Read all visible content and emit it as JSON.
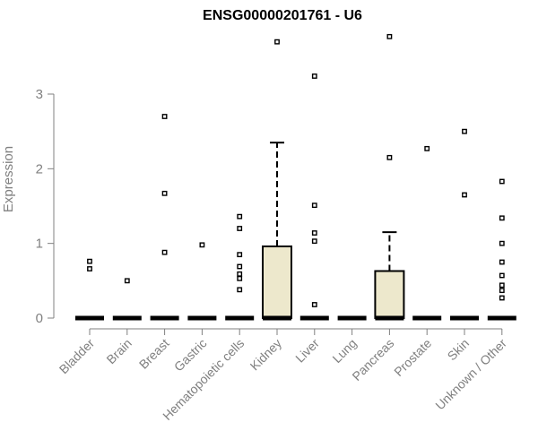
{
  "chart_data": {
    "type": "box",
    "title": "ENSG00000201761 - U6",
    "xlabel": "",
    "ylabel": "Expression",
    "ylim": [
      -0.1,
      3.85
    ],
    "yticks": [
      0,
      1,
      2,
      3
    ],
    "yticklabels": [
      "0",
      "1",
      "2",
      "3"
    ],
    "categories": [
      "Bladder",
      "Brain",
      "Breast",
      "Gastric",
      "Hematopoietic cells",
      "Kidney",
      "Liver",
      "Lung",
      "Pancreas",
      "Prostate",
      "Skin",
      "Unknown / Other"
    ],
    "boxes": [
      {
        "q1": 0,
        "median": 0,
        "q3": 0,
        "whisker_low": 0,
        "whisker_high": 0,
        "outliers": [
          0.66,
          0.76
        ]
      },
      {
        "q1": 0,
        "median": 0,
        "q3": 0,
        "whisker_low": 0,
        "whisker_high": 0,
        "outliers": [
          0.5
        ]
      },
      {
        "q1": 0,
        "median": 0,
        "q3": 0,
        "whisker_low": 0,
        "whisker_high": 0,
        "outliers": [
          0.88,
          1.67,
          2.7
        ]
      },
      {
        "q1": 0,
        "median": 0,
        "q3": 0,
        "whisker_low": 0,
        "whisker_high": 0,
        "outliers": [
          0.98
        ]
      },
      {
        "q1": 0,
        "median": 0,
        "q3": 0,
        "whisker_low": 0,
        "whisker_high": 0,
        "outliers": [
          0.38,
          0.53,
          0.59,
          0.69,
          0.85,
          1.2,
          1.36
        ]
      },
      {
        "q1": 0,
        "median": 0,
        "q3": 0.96,
        "whisker_low": 0,
        "whisker_high": 2.35,
        "outliers": [
          3.7
        ]
      },
      {
        "q1": 0,
        "median": 0,
        "q3": 0,
        "whisker_low": 0,
        "whisker_high": 0,
        "outliers": [
          0.18,
          1.03,
          1.14,
          1.51,
          3.24
        ]
      },
      {
        "q1": 0,
        "median": 0,
        "q3": 0,
        "whisker_low": 0,
        "whisker_high": 0,
        "outliers": []
      },
      {
        "q1": 0,
        "median": 0,
        "q3": 0.63,
        "whisker_low": 0,
        "whisker_high": 1.15,
        "outliers": [
          2.15,
          3.77
        ]
      },
      {
        "q1": 0,
        "median": 0,
        "q3": 0,
        "whisker_low": 0,
        "whisker_high": 0,
        "outliers": [
          2.27
        ]
      },
      {
        "q1": 0,
        "median": 0,
        "q3": 0,
        "whisker_low": 0,
        "whisker_high": 0,
        "outliers": [
          1.65,
          2.5
        ]
      },
      {
        "q1": 0,
        "median": 0,
        "q3": 0,
        "whisker_low": 0,
        "whisker_high": 0,
        "outliers": [
          0.27,
          0.37,
          0.44,
          0.57,
          0.75,
          1.0,
          1.34,
          1.83
        ]
      }
    ],
    "box_fill": "#ede8cc",
    "box_stroke": "#000000",
    "axis_color": "#808080",
    "grid": false,
    "legend": "none"
  }
}
